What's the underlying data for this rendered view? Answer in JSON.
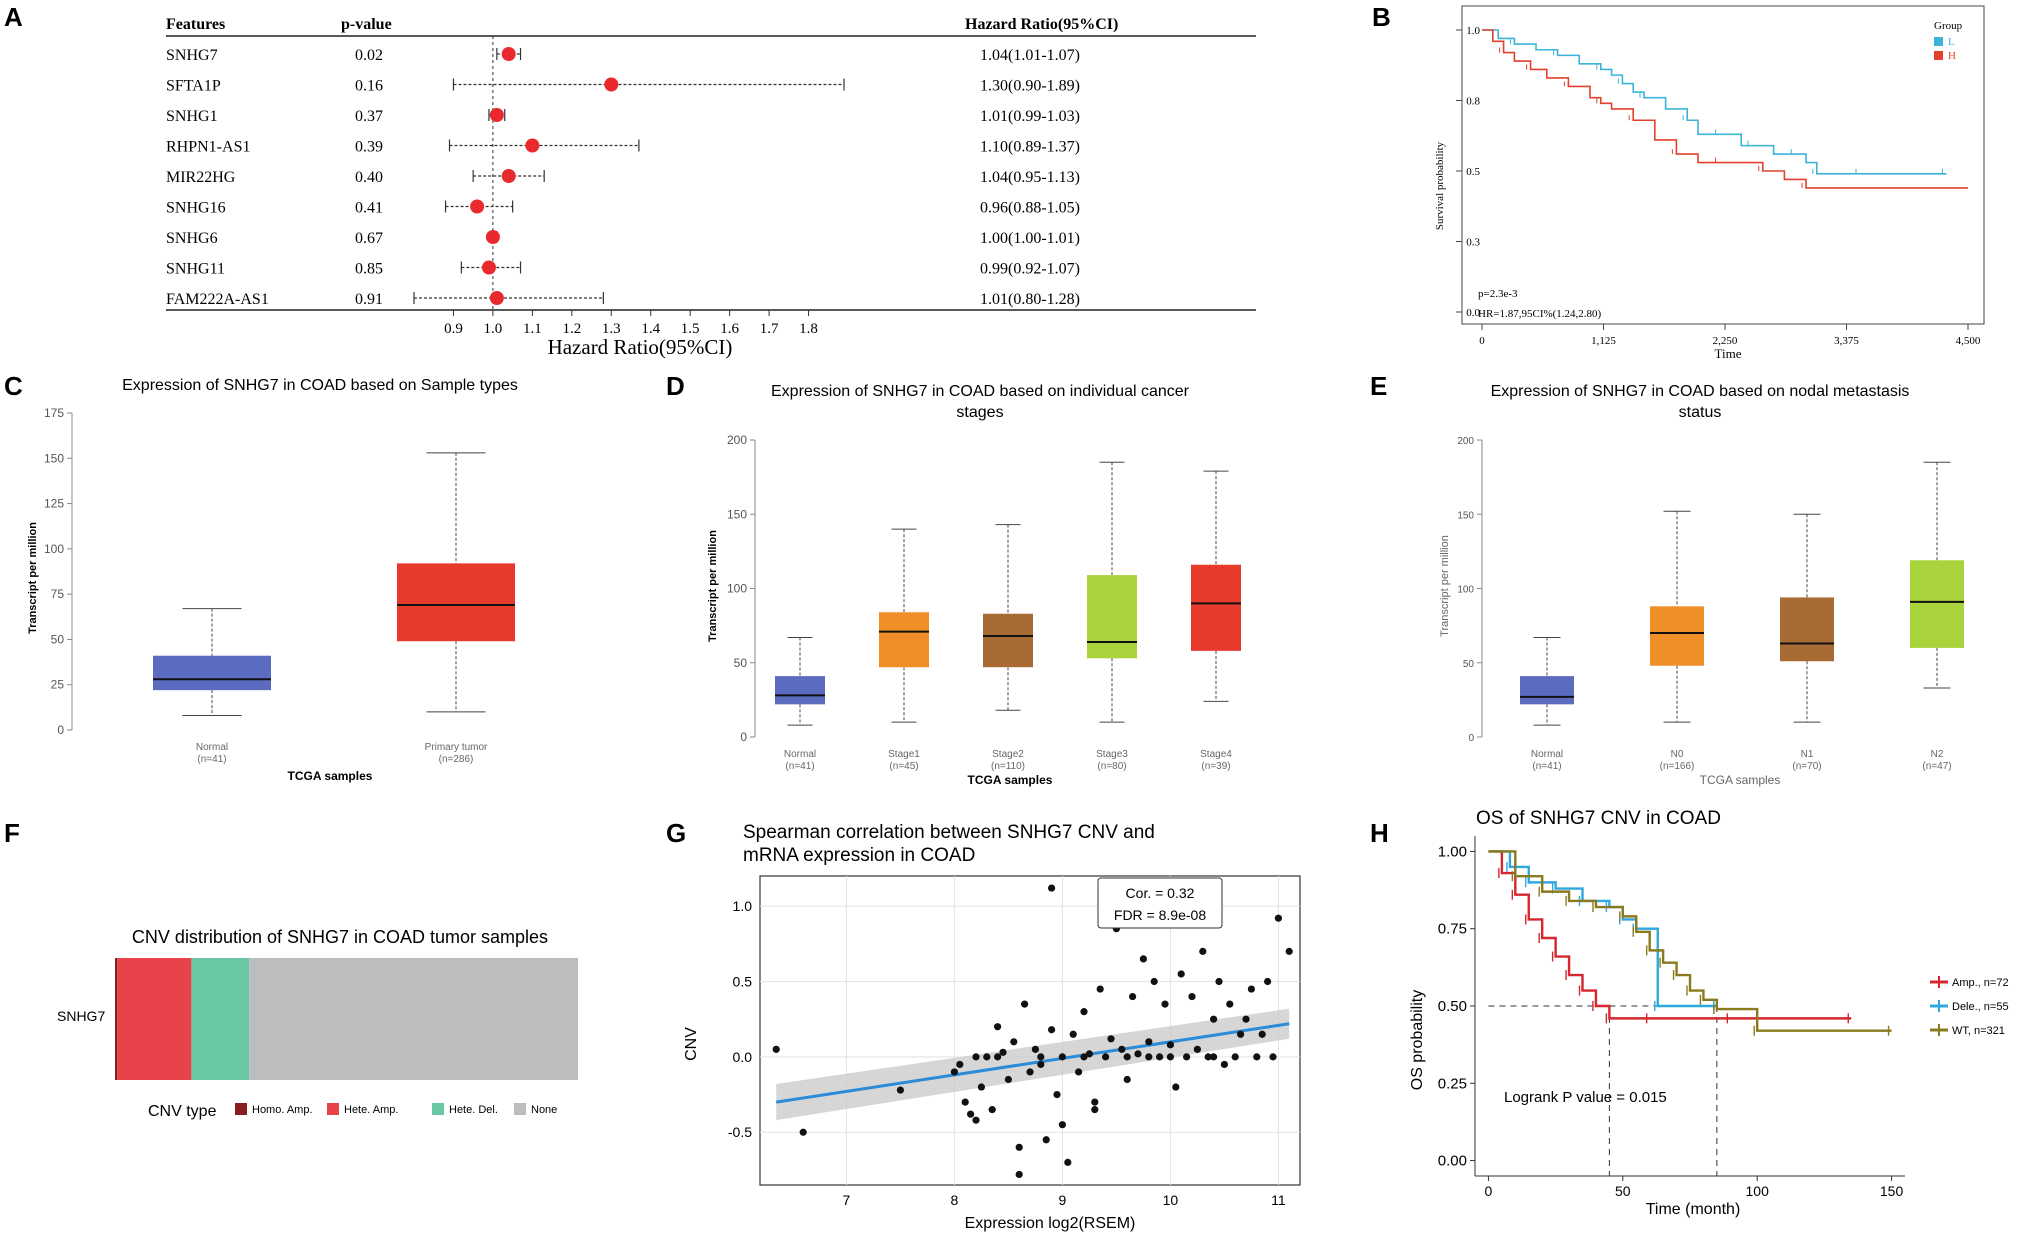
{
  "panels": {
    "a": "A",
    "b": "B",
    "c": "C",
    "d": "D",
    "e": "E",
    "f": "F",
    "g": "G",
    "h": "H"
  },
  "chart_data": [
    {
      "id": "A",
      "type": "forest",
      "headers": {
        "features": "Features",
        "pvalue": "p-value",
        "hr": "Hazard Ratio(95%CI)"
      },
      "rows": [
        {
          "feature": "SNHG7",
          "p": "0.02",
          "hr": 1.04,
          "lo": 1.01,
          "hi": 1.07,
          "label": "1.04(1.01-1.07)"
        },
        {
          "feature": "SFTA1P",
          "p": "0.16",
          "hr": 1.3,
          "lo": 0.9,
          "hi": 1.89,
          "label": "1.30(0.90-1.89)"
        },
        {
          "feature": "SNHG1",
          "p": "0.37",
          "hr": 1.01,
          "lo": 0.99,
          "hi": 1.03,
          "label": "1.01(0.99-1.03)"
        },
        {
          "feature": "RHPN1-AS1",
          "p": "0.39",
          "hr": 1.1,
          "lo": 0.89,
          "hi": 1.37,
          "label": "1.10(0.89-1.37)"
        },
        {
          "feature": "MIR22HG",
          "p": "0.40",
          "hr": 1.04,
          "lo": 0.95,
          "hi": 1.13,
          "label": "1.04(0.95-1.13)"
        },
        {
          "feature": "SNHG16",
          "p": "0.41",
          "hr": 0.96,
          "lo": 0.88,
          "hi": 1.05,
          "label": "0.96(0.88-1.05)"
        },
        {
          "feature": "SNHG6",
          "p": "0.67",
          "hr": 1.0,
          "lo": 1.0,
          "hi": 1.01,
          "label": "1.00(1.00-1.01)"
        },
        {
          "feature": "SNHG11",
          "p": "0.85",
          "hr": 0.99,
          "lo": 0.92,
          "hi": 1.07,
          "label": "0.99(0.92-1.07)"
        },
        {
          "feature": "FAM222A-AS1",
          "p": "0.91",
          "hr": 1.01,
          "lo": 0.8,
          "hi": 1.28,
          "label": "1.01(0.80-1.28)"
        }
      ],
      "ticks": [
        "0.9",
        "1.0",
        "1.1",
        "1.2",
        "1.3",
        "1.4",
        "1.5",
        "1.6",
        "1.7",
        "1.8"
      ],
      "xlabel": "Hazard Ratio(95%CI)",
      "xlim": [
        0.8,
        1.9
      ],
      "colors": {
        "point": "#e8292d"
      }
    },
    {
      "id": "B",
      "type": "line",
      "ylabel": "Survival probability",
      "xlabel": "Time",
      "xticks": [
        "0",
        "1,125",
        "2,250",
        "3,375",
        "4,500"
      ],
      "yticks": [
        "0.0",
        "0.3",
        "0.5",
        "0.8",
        "1.0"
      ],
      "xlim": [
        0,
        4500
      ],
      "ylim": [
        0,
        1
      ],
      "legend_title": "Group",
      "series": [
        {
          "name": "L",
          "color": "#3db3d8",
          "x": [
            0,
            150,
            300,
            500,
            700,
            900,
            1100,
            1200,
            1300,
            1400,
            1500,
            1700,
            1900,
            2000,
            2200,
            2400,
            2500,
            2700,
            2900,
            3000,
            3100,
            3300,
            3500,
            3800,
            4300
          ],
          "y": [
            1.0,
            0.97,
            0.95,
            0.93,
            0.91,
            0.88,
            0.86,
            0.84,
            0.81,
            0.78,
            0.76,
            0.72,
            0.68,
            0.63,
            0.63,
            0.59,
            0.59,
            0.56,
            0.56,
            0.53,
            0.49,
            0.49,
            0.49,
            0.49,
            0.49
          ]
        },
        {
          "name": "H",
          "color": "#e4402e",
          "x": [
            0,
            100,
            200,
            300,
            450,
            600,
            800,
            1000,
            1100,
            1200,
            1400,
            1600,
            1800,
            2000,
            2200,
            2400,
            2600,
            2800,
            3000,
            4500
          ],
          "y": [
            1.0,
            0.96,
            0.92,
            0.89,
            0.86,
            0.83,
            0.8,
            0.76,
            0.74,
            0.72,
            0.68,
            0.61,
            0.56,
            0.53,
            0.53,
            0.53,
            0.5,
            0.47,
            0.44,
            0.44
          ]
        }
      ],
      "annotations": [
        "p=2.3e-3",
        "HR=1.87,95CI%(1.24,2.80)"
      ]
    },
    {
      "id": "C",
      "type": "box",
      "title": "Expression of SNHG7 in COAD based on Sample types",
      "ylabel": "Transcript per million",
      "xlabel": "TCGA samples",
      "yticks": [
        0,
        25,
        50,
        75,
        100,
        125,
        150,
        175
      ],
      "ylim": [
        0,
        175
      ],
      "boxes": [
        {
          "name": "Normal",
          "n": "(n=41)",
          "min": 8,
          "q1": 22,
          "median": 28,
          "q3": 41,
          "max": 67,
          "color": "#5b6bbf"
        },
        {
          "name": "Primary tumor",
          "n": "(n=286)",
          "min": 10,
          "q1": 49,
          "median": 69,
          "q3": 92,
          "max": 153,
          "color": "#e8392d"
        }
      ]
    },
    {
      "id": "D",
      "type": "box",
      "title": "Expression of SNHG7 in COAD based on individual cancer stages",
      "ylabel": "Transcript per million",
      "xlabel": "TCGA samples",
      "yticks": [
        0,
        50,
        100,
        150,
        200
      ],
      "ylim": [
        0,
        200
      ],
      "boxes": [
        {
          "name": "Normal",
          "n": "(n=41)",
          "min": 8,
          "q1": 22,
          "median": 28,
          "q3": 41,
          "max": 67,
          "color": "#5b6bbf"
        },
        {
          "name": "Stage1",
          "n": "(n=45)",
          "min": 10,
          "q1": 47,
          "median": 71,
          "q3": 84,
          "max": 140,
          "color": "#f08f28"
        },
        {
          "name": "Stage2",
          "n": "(n=110)",
          "min": 18,
          "q1": 47,
          "median": 68,
          "q3": 83,
          "max": 143,
          "color": "#a86b34"
        },
        {
          "name": "Stage3",
          "n": "(n=80)",
          "min": 10,
          "q1": 53,
          "median": 64,
          "q3": 109,
          "max": 185,
          "color": "#a8d33a"
        },
        {
          "name": "Stage4",
          "n": "(n=39)",
          "min": 24,
          "q1": 58,
          "median": 90,
          "q3": 116,
          "max": 179,
          "color": "#e8392d"
        }
      ]
    },
    {
      "id": "E",
      "type": "box",
      "title": "Expression of SNHG7 in COAD based on nodal metastasis status",
      "ylabel": "Transcript per million",
      "xlabel": "TCGA samples",
      "yticks": [
        0,
        50,
        100,
        150,
        200
      ],
      "ylim": [
        0,
        200
      ],
      "boxes": [
        {
          "name": "Normal",
          "n": "(n=41)",
          "min": 8,
          "q1": 22,
          "median": 27,
          "q3": 41,
          "max": 67,
          "color": "#5b6bbf"
        },
        {
          "name": "N0",
          "n": "(n=166)",
          "min": 10,
          "q1": 48,
          "median": 70,
          "q3": 88,
          "max": 152,
          "color": "#f08f28"
        },
        {
          "name": "N1",
          "n": "(n=70)",
          "min": 10,
          "q1": 51,
          "median": 63,
          "q3": 94,
          "max": 150,
          "color": "#a86b34"
        },
        {
          "name": "N2",
          "n": "(n=47)",
          "min": 33,
          "q1": 60,
          "median": 91,
          "q3": 119,
          "max": 185,
          "color": "#a8d33a"
        }
      ]
    },
    {
      "id": "F",
      "type": "bar",
      "title": "CNV distribution of SNHG7 in COAD tumor samples",
      "category": "SNHG7",
      "legend_title": "CNV type",
      "segments": [
        {
          "name": "Homo. Amp.",
          "value": 0.005,
          "color": "#8a1d1d"
        },
        {
          "name": "Hete. Amp.",
          "value": 0.16,
          "color": "#e8434a"
        },
        {
          "name": "Hete. Del.",
          "value": 0.125,
          "color": "#69c7a4"
        },
        {
          "name": "None",
          "value": 0.71,
          "color": "#bdbdc0"
        }
      ]
    },
    {
      "id": "G",
      "type": "scatter",
      "title_line1": "Spearman correlation between SNHG7 CNV and",
      "title_line2": "mRNA expression in COAD",
      "xlabel": "Expression log2(RSEM)",
      "ylabel": "CNV",
      "xticks": [
        "7",
        "8",
        "9",
        "10",
        "11"
      ],
      "yticks": [
        "-0.5",
        "0.0",
        "0.5",
        "1.0"
      ],
      "xlim": [
        6.2,
        11.2
      ],
      "ylim": [
        -0.85,
        1.2
      ],
      "cor": "Cor. = 0.32",
      "fdr": "FDR = 8.9e-08",
      "fit": {
        "x": [
          6.35,
          11.1
        ],
        "y": [
          -0.3,
          0.22
        ]
      },
      "points": [
        [
          6.35,
          0.05
        ],
        [
          6.6,
          -0.5
        ],
        [
          7.5,
          -0.22
        ],
        [
          8.0,
          -0.1
        ],
        [
          8.05,
          -0.05
        ],
        [
          8.1,
          -0.3
        ],
        [
          8.15,
          -0.38
        ],
        [
          8.2,
          -0.42
        ],
        [
          8.25,
          -0.2
        ],
        [
          8.3,
          0.0
        ],
        [
          8.35,
          -0.35
        ],
        [
          8.4,
          0.2
        ],
        [
          8.45,
          0.03
        ],
        [
          8.5,
          -0.15
        ],
        [
          8.55,
          0.1
        ],
        [
          8.6,
          -0.6
        ],
        [
          8.6,
          -0.78
        ],
        [
          8.65,
          0.35
        ],
        [
          8.7,
          -0.1
        ],
        [
          8.75,
          0.05
        ],
        [
          8.8,
          -0.05
        ],
        [
          8.85,
          -0.55
        ],
        [
          8.9,
          0.18
        ],
        [
          8.95,
          -0.25
        ],
        [
          9.0,
          0.0
        ],
        [
          9.0,
          -0.45
        ],
        [
          9.05,
          -0.7
        ],
        [
          9.1,
          0.15
        ],
        [
          9.15,
          -0.1
        ],
        [
          9.2,
          0.3
        ],
        [
          9.25,
          0.02
        ],
        [
          9.3,
          -0.3
        ],
        [
          9.35,
          0.45
        ],
        [
          9.4,
          0.0
        ],
        [
          9.45,
          0.12
        ],
        [
          9.5,
          0.85
        ],
        [
          9.55,
          0.05
        ],
        [
          9.6,
          -0.15
        ],
        [
          9.65,
          0.4
        ],
        [
          9.7,
          0.02
        ],
        [
          9.75,
          0.65
        ],
        [
          9.8,
          0.1
        ],
        [
          9.85,
          0.5
        ],
        [
          9.9,
          0.0
        ],
        [
          9.95,
          0.35
        ],
        [
          10.0,
          0.08
        ],
        [
          10.05,
          -0.2
        ],
        [
          10.1,
          0.55
        ],
        [
          10.15,
          0.0
        ],
        [
          10.2,
          0.4
        ],
        [
          10.25,
          0.05
        ],
        [
          10.3,
          0.7
        ],
        [
          10.35,
          0.0
        ],
        [
          10.4,
          0.25
        ],
        [
          10.45,
          0.5
        ],
        [
          10.5,
          -0.05
        ],
        [
          10.55,
          0.35
        ],
        [
          10.6,
          0.0
        ],
        [
          10.65,
          0.15
        ],
        [
          10.7,
          0.25
        ],
        [
          10.75,
          0.45
        ],
        [
          10.8,
          0.0
        ],
        [
          10.85,
          0.15
        ],
        [
          10.9,
          0.5
        ],
        [
          10.95,
          0.0
        ],
        [
          11.0,
          0.92
        ],
        [
          11.1,
          0.7
        ],
        [
          8.9,
          1.12
        ],
        [
          9.3,
          -0.35
        ],
        [
          8.8,
          0.0
        ],
        [
          9.2,
          0.0
        ],
        [
          9.6,
          0.0
        ],
        [
          10.0,
          0.0
        ],
        [
          10.4,
          0.0
        ],
        [
          8.4,
          0.0
        ],
        [
          8.2,
          0.0
        ],
        [
          9.8,
          0.0
        ]
      ],
      "colors": {
        "point": "#111111",
        "line": "#2a8bd8",
        "band": "#c8c8c8"
      }
    },
    {
      "id": "H",
      "type": "line",
      "title": "OS of SNHG7 CNV in COAD",
      "ylabel": "OS probability",
      "xlabel": "Time (month)",
      "xticks": [
        "0",
        "50",
        "100",
        "150"
      ],
      "yticks": [
        "0.00",
        "0.25",
        "0.50",
        "0.75",
        "1.00"
      ],
      "xlim": [
        -5,
        155
      ],
      "ylim": [
        -0.05,
        1.05
      ],
      "logrank": "Logrank P value = 0.015",
      "series": [
        {
          "name": "Amp., n=72",
          "color": "#d6272e",
          "x": [
            0,
            5,
            10,
            15,
            20,
            25,
            30,
            35,
            40,
            45,
            60,
            90,
            135
          ],
          "y": [
            1.0,
            0.93,
            0.86,
            0.78,
            0.72,
            0.66,
            0.6,
            0.55,
            0.5,
            0.46,
            0.46,
            0.46,
            0.46
          ]
        },
        {
          "name": "Dele., n=55",
          "color": "#2fa8e0",
          "x": [
            0,
            8,
            15,
            25,
            35,
            45,
            50,
            55,
            63,
            85
          ],
          "y": [
            1.0,
            0.95,
            0.9,
            0.88,
            0.84,
            0.82,
            0.78,
            0.75,
            0.5,
            0.5
          ]
        },
        {
          "name": "WT, n=321",
          "color": "#8a7a1e",
          "x": [
            0,
            10,
            20,
            30,
            40,
            50,
            55,
            60,
            65,
            70,
            75,
            80,
            85,
            100,
            150
          ],
          "y": [
            1.0,
            0.92,
            0.87,
            0.84,
            0.82,
            0.79,
            0.74,
            0.68,
            0.64,
            0.6,
            0.55,
            0.52,
            0.49,
            0.42,
            0.42
          ]
        }
      ]
    }
  ]
}
